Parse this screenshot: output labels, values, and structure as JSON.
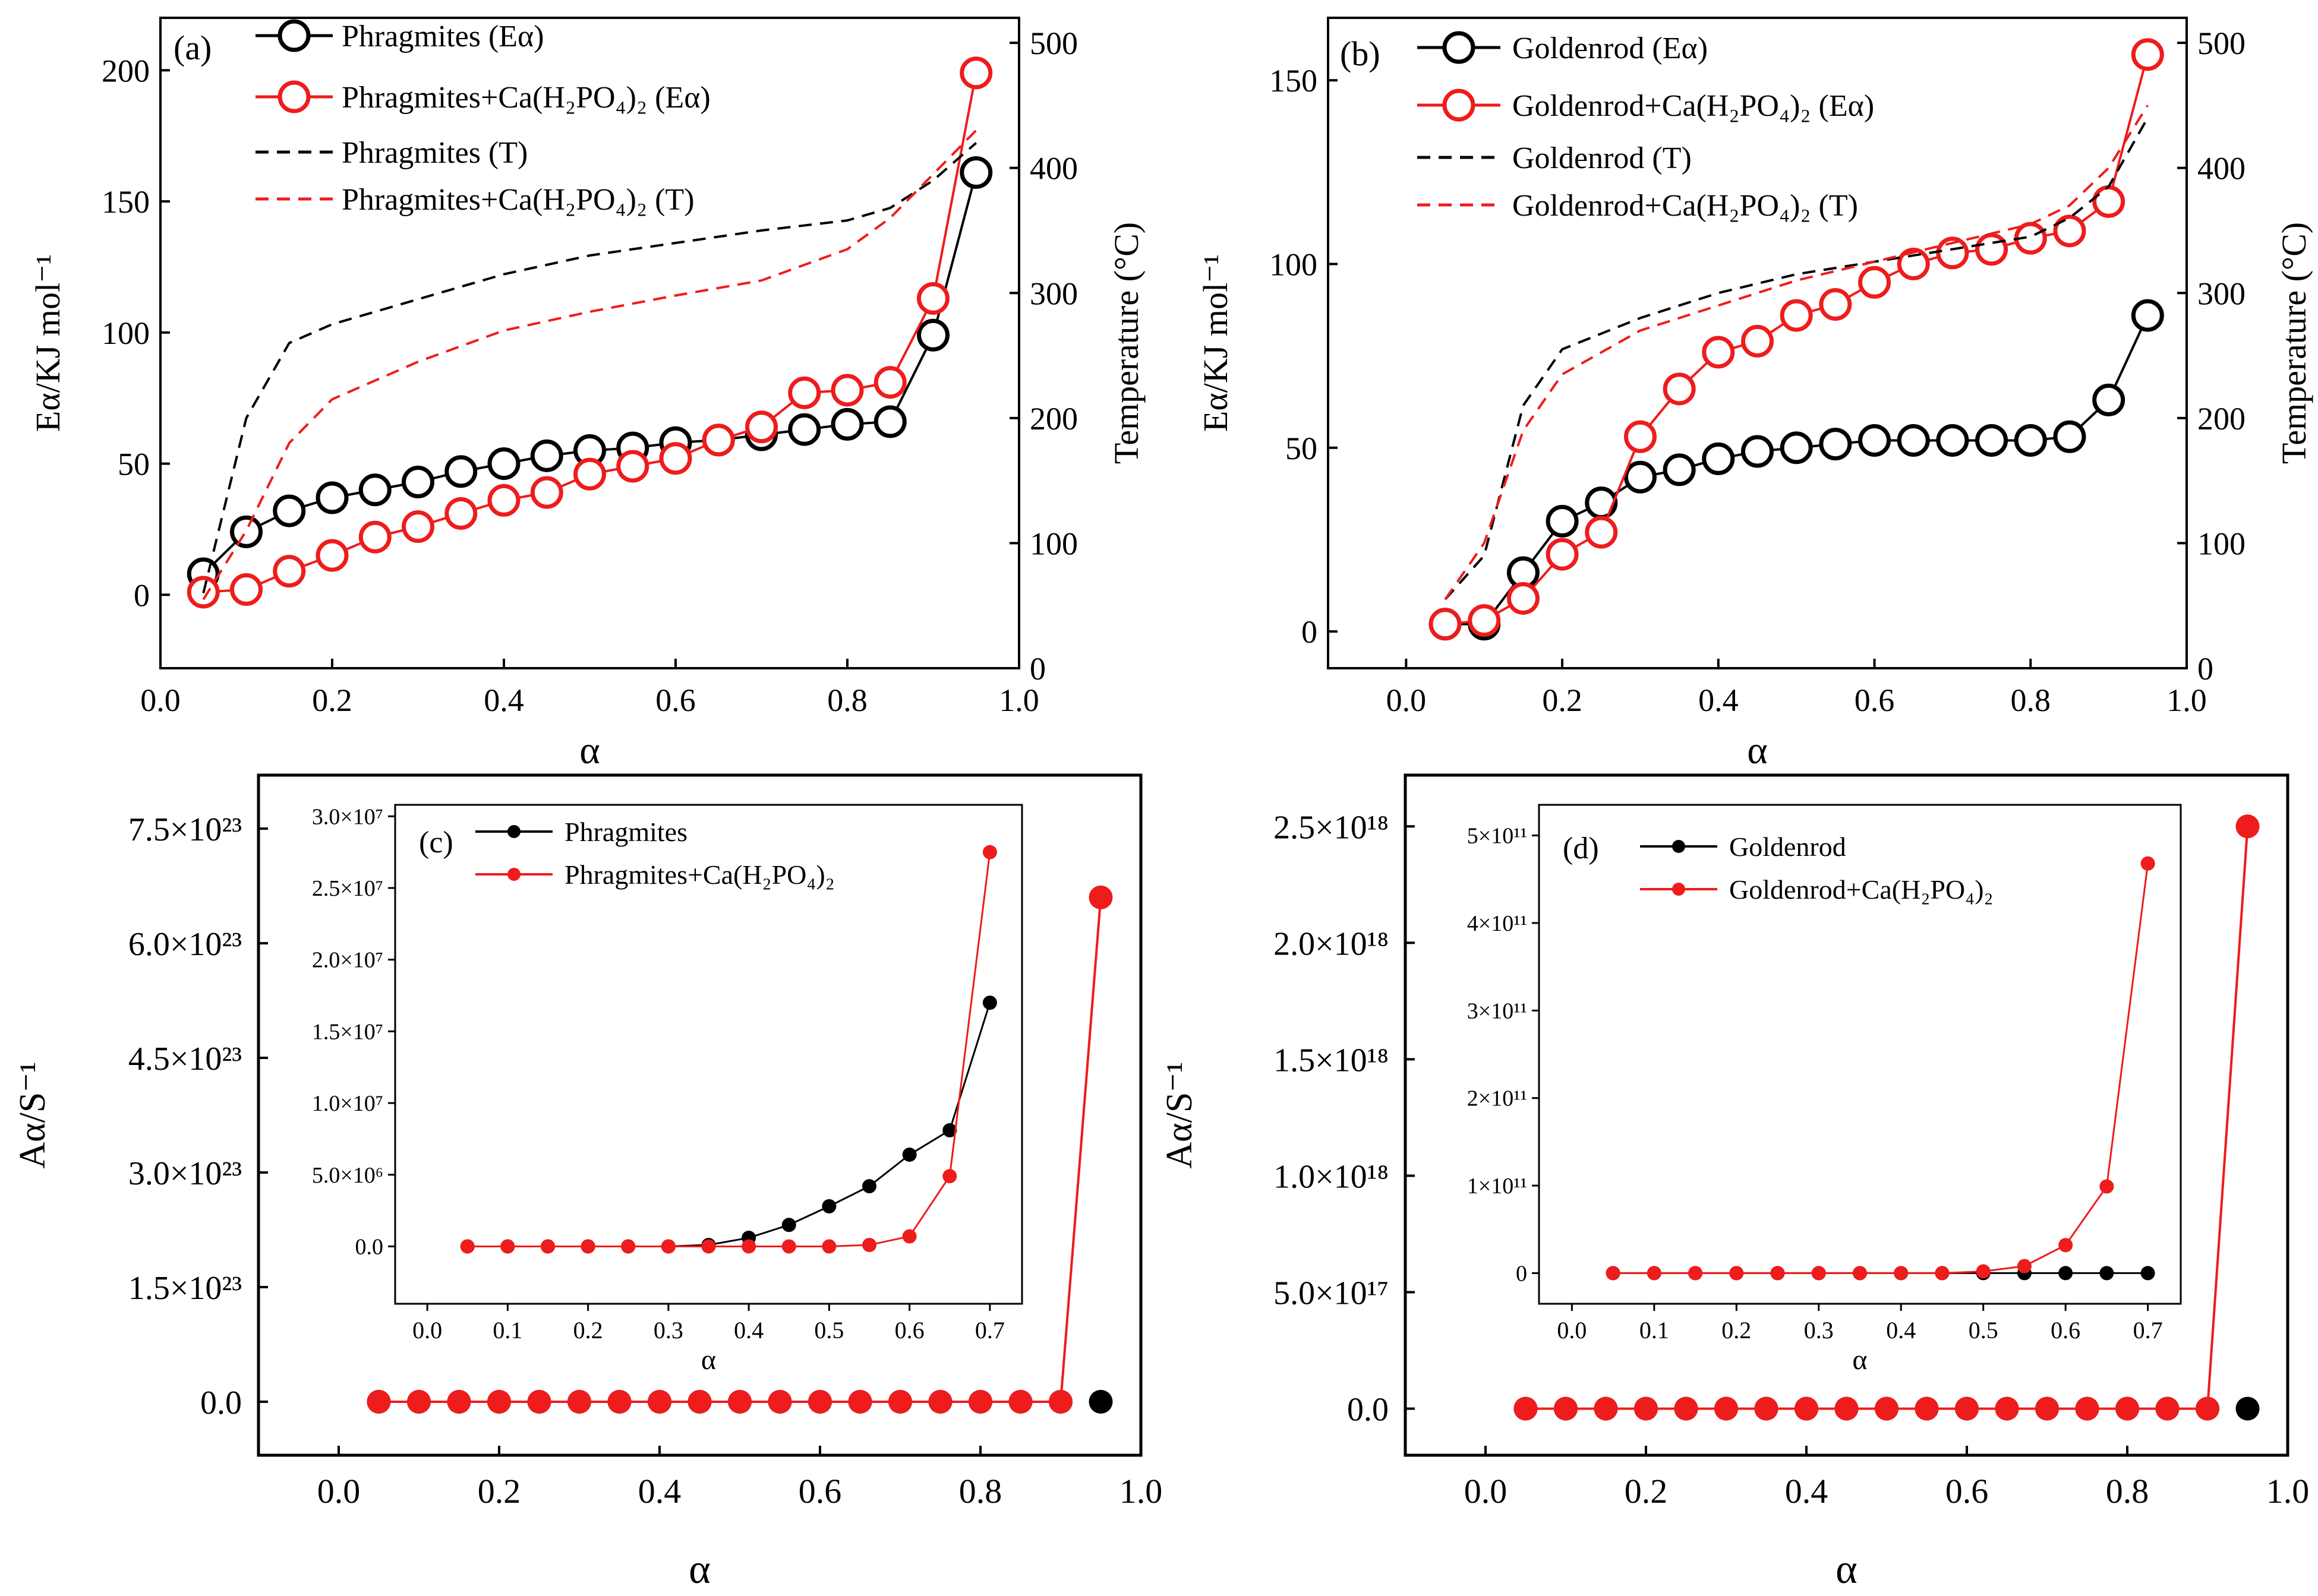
{
  "colors": {
    "black": "#000000",
    "red": "#ee1c1c"
  },
  "panels": {
    "a": {
      "label": "(a)",
      "xlabel": "α",
      "ylabel_left": "Eα/KJ mol⁻¹",
      "ylabel_right": "Temperature (°C)",
      "x_ticks": [
        "0.0",
        "0.2",
        "0.4",
        "0.6",
        "0.8",
        "1.0"
      ],
      "y_left_ticks": [
        "0",
        "50",
        "100",
        "150",
        "200"
      ],
      "y_right_ticks": [
        "0",
        "100",
        "200",
        "300",
        "400",
        "500"
      ],
      "legend": [
        "Phragmites (Eα)",
        "Phragmites+Ca(H₂PO₄)₂ (Eα)",
        "Phragmites (T)",
        "Phragmites+Ca(H₂PO₄)₂ (T)"
      ]
    },
    "b": {
      "label": "(b)",
      "xlabel": "α",
      "ylabel_left": "Eα/KJ mol⁻¹",
      "ylabel_right": "Temperature (°C)",
      "x_ticks": [
        "0.0",
        "0.2",
        "0.4",
        "0.6",
        "0.8",
        "1.0"
      ],
      "y_left_ticks": [
        "0",
        "50",
        "100",
        "150"
      ],
      "y_right_ticks": [
        "0",
        "100",
        "200",
        "300",
        "400",
        "500"
      ],
      "legend": [
        "Goldenrod (Eα)",
        "Goldenrod+Ca(H₂PO₄)₂ (Eα)",
        "Goldenrod (T)",
        "Goldenrod+Ca(H₂PO₄)₂ (T)"
      ]
    },
    "c": {
      "label": "(c)",
      "xlabel": "α",
      "ylabel": "Aα/S⁻¹",
      "x_ticks": [
        "0.0",
        "0.2",
        "0.4",
        "0.6",
        "0.8",
        "1.0"
      ],
      "y_ticks": [
        "0.0",
        "1.5×10²³",
        "3.0×10²³",
        "4.5×10²³",
        "6.0×10²³",
        "7.5×10²³"
      ],
      "inset_xlabel": "α",
      "inset_x_ticks": [
        "0.0",
        "0.1",
        "0.2",
        "0.3",
        "0.4",
        "0.5",
        "0.6",
        "0.7"
      ],
      "inset_y_ticks": [
        "0.0",
        "5.0×10⁶",
        "1.0×10⁷",
        "1.5×10⁷",
        "2.0×10⁷",
        "2.5×10⁷",
        "3.0×10⁷"
      ],
      "legend": [
        "Phragmites",
        "Phragmites+Ca(H₂PO₄)₂"
      ]
    },
    "d": {
      "label": "(d)",
      "xlabel": "α",
      "ylabel": "Aα/S⁻¹",
      "x_ticks": [
        "0.0",
        "0.2",
        "0.4",
        "0.6",
        "0.8",
        "1.0"
      ],
      "y_ticks": [
        "0.0",
        "5.0×10¹⁷",
        "1.0×10¹⁸",
        "1.5×10¹⁸",
        "2.0×10¹⁸",
        "2.5×10¹⁸"
      ],
      "inset_xlabel": "α",
      "inset_x_ticks": [
        "0.0",
        "0.1",
        "0.2",
        "0.3",
        "0.4",
        "0.5",
        "0.6",
        "0.7"
      ],
      "inset_y_ticks": [
        "0",
        "1×10¹¹",
        "2×10¹¹",
        "3×10¹¹",
        "4×10¹¹",
        "5×10¹¹"
      ],
      "legend": [
        "Goldenrod",
        "Goldenrod+Ca(H₂PO₄)₂"
      ]
    }
  },
  "chart_data": [
    {
      "id": "a",
      "type": "line",
      "title": "(a)",
      "xlabel": "α",
      "ylabel": "Eα/KJ mol⁻¹",
      "y2label": "Temperature (°C)",
      "xlim": [
        0.0,
        1.0
      ],
      "ylim": [
        -28,
        220
      ],
      "y2lim": [
        0,
        520
      ],
      "alpha": [
        0.05,
        0.1,
        0.15,
        0.2,
        0.25,
        0.3,
        0.35,
        0.4,
        0.45,
        0.5,
        0.55,
        0.6,
        0.65,
        0.7,
        0.75,
        0.8,
        0.85,
        0.9,
        0.95
      ],
      "series": [
        {
          "name": "Phragmites (Eα)",
          "axis": "left",
          "style": "open-circle",
          "color": "black",
          "values": [
            8,
            24,
            32,
            37,
            40,
            43,
            47,
            50,
            53,
            55,
            56,
            58,
            59,
            61,
            63,
            65,
            66,
            99,
            161
          ]
        },
        {
          "name": "Phragmites+Ca(H₂PO₄)₂ (Eα)",
          "axis": "left",
          "style": "open-circle",
          "color": "red",
          "values": [
            1,
            2,
            9,
            15,
            22,
            26,
            31,
            36,
            39,
            46,
            49,
            52,
            59,
            64,
            77,
            78,
            81,
            113,
            199
          ]
        },
        {
          "name": "Phragmites (T)",
          "axis": "right",
          "style": "dash",
          "color": "black",
          "x": [
            0.05,
            0.1,
            0.15,
            0.2,
            0.3,
            0.4,
            0.5,
            0.6,
            0.7,
            0.8,
            0.85,
            0.9,
            0.95
          ],
          "values": [
            60,
            200,
            260,
            275,
            295,
            315,
            330,
            340,
            350,
            358,
            368,
            390,
            420
          ]
        },
        {
          "name": "Phragmites+Ca(H₂PO₄)₂ (T)",
          "axis": "right",
          "style": "dash",
          "color": "red",
          "x": [
            0.05,
            0.1,
            0.15,
            0.2,
            0.3,
            0.4,
            0.5,
            0.6,
            0.7,
            0.8,
            0.85,
            0.9,
            0.95
          ],
          "values": [
            55,
            110,
            180,
            215,
            245,
            270,
            285,
            298,
            310,
            335,
            360,
            395,
            430
          ]
        }
      ]
    },
    {
      "id": "b",
      "type": "line",
      "title": "(b)",
      "xlabel": "α",
      "ylabel": "Eα/KJ mol⁻¹",
      "y2label": "Temperature (°C)",
      "xlim": [
        -0.1,
        1.0
      ],
      "ylim": [
        -10,
        167
      ],
      "y2lim": [
        0,
        520
      ],
      "alpha": [
        0.05,
        0.1,
        0.15,
        0.2,
        0.25,
        0.3,
        0.35,
        0.4,
        0.45,
        0.5,
        0.55,
        0.6,
        0.65,
        0.7,
        0.75,
        0.8,
        0.85,
        0.9,
        0.95
      ],
      "series": [
        {
          "name": "Goldenrod (Eα)",
          "axis": "left",
          "style": "open-circle",
          "color": "black",
          "values": [
            2,
            2,
            16,
            30,
            35,
            42,
            44,
            47,
            49,
            50,
            51,
            52,
            52,
            52,
            52,
            52,
            53,
            63,
            86
          ]
        },
        {
          "name": "Goldenrod+Ca(H₂PO₄)₂ (Eα)",
          "axis": "left",
          "style": "open-circle",
          "color": "red",
          "values": [
            2,
            3,
            9,
            21,
            27,
            53,
            66,
            76,
            79,
            86,
            89,
            95,
            100,
            103,
            104,
            107,
            109,
            117,
            157
          ]
        },
        {
          "name": "Goldenrod (T)",
          "axis": "right",
          "style": "dash",
          "color": "black",
          "x": [
            0.05,
            0.1,
            0.15,
            0.2,
            0.3,
            0.4,
            0.5,
            0.6,
            0.7,
            0.8,
            0.85,
            0.9,
            0.95
          ],
          "values": [
            55,
            90,
            210,
            255,
            280,
            300,
            315,
            325,
            335,
            345,
            360,
            385,
            440
          ]
        },
        {
          "name": "Goldenrod+Ca(H₂PO₄)₂ (T)",
          "axis": "right",
          "style": "dash",
          "color": "red",
          "x": [
            0.05,
            0.1,
            0.15,
            0.2,
            0.3,
            0.4,
            0.5,
            0.6,
            0.7,
            0.8,
            0.85,
            0.9,
            0.95
          ],
          "values": [
            55,
            100,
            190,
            235,
            270,
            290,
            310,
            325,
            340,
            355,
            370,
            400,
            450
          ]
        }
      ]
    },
    {
      "id": "c",
      "type": "line",
      "title": "(c)",
      "xlabel": "α",
      "ylabel": "Aα/S⁻¹",
      "xlim": [
        -0.1,
        1.0
      ],
      "ylim": [
        -7e+22,
        8.2e+23
      ],
      "alpha": [
        0.05,
        0.1,
        0.15,
        0.2,
        0.25,
        0.3,
        0.35,
        0.4,
        0.45,
        0.5,
        0.55,
        0.6,
        0.65,
        0.7,
        0.75,
        0.8,
        0.85,
        0.9,
        0.95
      ],
      "series": [
        {
          "name": "Phragmites",
          "color": "black",
          "style": "filled-circle",
          "values": [
            0,
            0,
            0,
            0,
            0,
            0,
            0,
            0,
            0,
            0,
            0,
            0,
            0,
            0,
            0,
            0,
            0,
            0,
            0
          ]
        },
        {
          "name": "Phragmites+Ca(H₂PO₄)₂",
          "color": "red",
          "style": "filled-circle",
          "values": [
            0,
            0,
            0,
            0,
            0,
            0,
            0,
            0,
            0,
            0,
            0,
            0,
            0,
            0,
            0,
            0,
            0,
            0,
            6.6e+23
          ]
        }
      ],
      "inset": {
        "xlim": [
          -0.04,
          0.74
        ],
        "ylim": [
          -4000000.0,
          30800000.0
        ],
        "alpha": [
          0.05,
          0.1,
          0.15,
          0.2,
          0.25,
          0.3,
          0.35,
          0.4,
          0.45,
          0.5,
          0.55,
          0.6,
          0.65,
          0.7
        ],
        "series": [
          {
            "name": "Phragmites",
            "color": "black",
            "values": [
              0,
              0,
              0,
              0,
              0,
              0,
              100000.0,
              600000.0,
              1500000.0,
              2800000.0,
              4200000.0,
              6400000.0,
              8100000.0,
              17000000.0
            ]
          },
          {
            "name": "Phragmites+Ca(H₂PO₄)₂",
            "color": "red",
            "values": [
              0,
              0,
              0,
              0,
              0,
              0,
              0,
              0,
              0,
              0,
              100000.0,
              700000.0,
              4900000.0,
              27500000.0
            ]
          }
        ]
      }
    },
    {
      "id": "d",
      "type": "line",
      "title": "(d)",
      "xlabel": "α",
      "ylabel": "Aα/S⁻¹",
      "xlim": [
        -0.1,
        1.0
      ],
      "ylim": [
        -2e+17,
        2.72e+18
      ],
      "alpha": [
        0.05,
        0.1,
        0.15,
        0.2,
        0.25,
        0.3,
        0.35,
        0.4,
        0.45,
        0.5,
        0.55,
        0.6,
        0.65,
        0.7,
        0.75,
        0.8,
        0.85,
        0.9,
        0.95
      ],
      "series": [
        {
          "name": "Goldenrod",
          "color": "black",
          "style": "filled-circle",
          "values": [
            0,
            0,
            0,
            0,
            0,
            0,
            0,
            0,
            0,
            0,
            0,
            0,
            0,
            0,
            0,
            0,
            0,
            0,
            0
          ]
        },
        {
          "name": "Goldenrod+Ca(H₂PO₄)₂",
          "color": "red",
          "style": "filled-circle",
          "values": [
            0,
            0,
            0,
            0,
            0,
            0,
            0,
            0,
            0,
            0,
            0,
            0,
            0,
            0,
            0,
            0,
            0,
            0,
            2.5e+18
          ]
        }
      ],
      "inset": {
        "xlim": [
          -0.04,
          0.74
        ],
        "ylim": [
          -35000000000.0,
          535000000000.0
        ],
        "alpha": [
          0.05,
          0.1,
          0.15,
          0.2,
          0.25,
          0.3,
          0.35,
          0.4,
          0.45,
          0.5,
          0.55,
          0.6,
          0.65,
          0.7
        ],
        "series": [
          {
            "name": "Goldenrod",
            "color": "black",
            "values": [
              0,
              0,
              0,
              0,
              0,
              0,
              0,
              0,
              0,
              0,
              0,
              0,
              0,
              0
            ]
          },
          {
            "name": "Goldenrod+Ca(H₂PO₄)₂",
            "color": "red",
            "values": [
              0,
              0,
              0,
              0,
              0,
              0,
              0,
              0,
              0,
              2000000000.0,
              8000000000.0,
              32000000000.0,
              99000000000.0,
              468000000000.0
            ]
          }
        ]
      }
    }
  ]
}
